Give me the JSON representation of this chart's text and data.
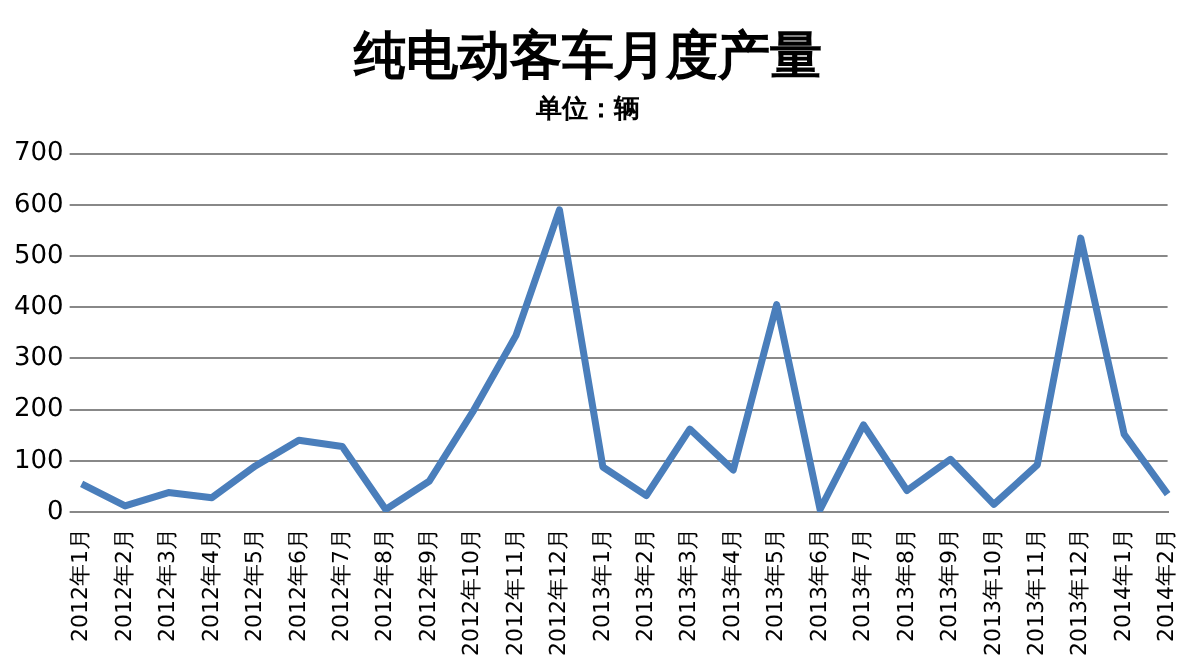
{
  "chart_data": {
    "type": "line",
    "title": "纯电动客车月度产量",
    "subtitle": "单位：辆",
    "categories": [
      "2012年1月",
      "2012年2月",
      "2012年3月",
      "2012年4月",
      "2012年5月",
      "2012年6月",
      "2012年7月",
      "2012年8月",
      "2012年9月",
      "2012年10月",
      "2012年11月",
      "2012年12月",
      "2013年1月",
      "2013年2月",
      "2013年3月",
      "2013年4月",
      "2013年5月",
      "2013年6月",
      "2013年7月",
      "2013年8月",
      "2013年9月",
      "2013年10月",
      "2013年11月",
      "2013年12月",
      "2014年1月",
      "2014年2月"
    ],
    "series": [
      {
        "color": "#4a7ebb",
        "values": [
          55,
          12,
          38,
          28,
          90,
          140,
          128,
          5,
          60,
          195,
          345,
          590,
          88,
          32,
          162,
          82,
          405,
          5,
          170,
          42,
          103,
          15,
          92,
          535,
          152,
          35
        ]
      }
    ],
    "ylim": [
      0,
      700
    ],
    "yticks": [
      0,
      100,
      200,
      300,
      400,
      500,
      600,
      700
    ],
    "grid": "y",
    "legend": false,
    "marker": "none",
    "line_style": "solid"
  }
}
